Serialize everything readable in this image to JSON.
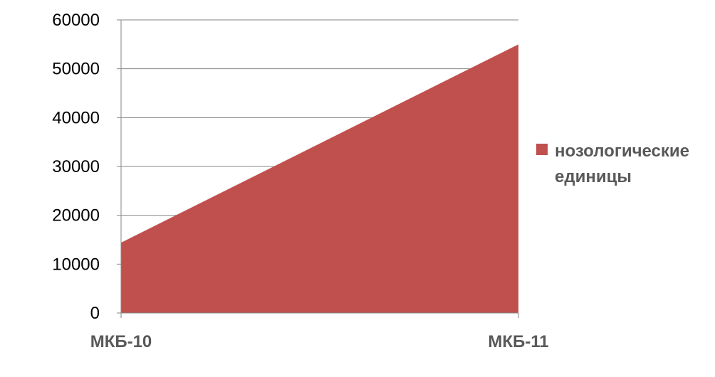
{
  "chart_data": {
    "type": "area",
    "categories": [
      "МКБ-10",
      "МКБ-11"
    ],
    "series": [
      {
        "name": "нозологические единицы",
        "values": [
          14400,
          55000
        ]
      }
    ],
    "ylim": [
      0,
      60000
    ],
    "yticks": [
      0,
      10000,
      20000,
      30000,
      40000,
      50000,
      60000
    ],
    "grid": true,
    "legend": {
      "position": "right",
      "lines": [
        "нозологические",
        "единицы"
      ]
    },
    "colors": {
      "area": "#c0504d",
      "grid": "#868686",
      "axis": "#868686"
    }
  }
}
